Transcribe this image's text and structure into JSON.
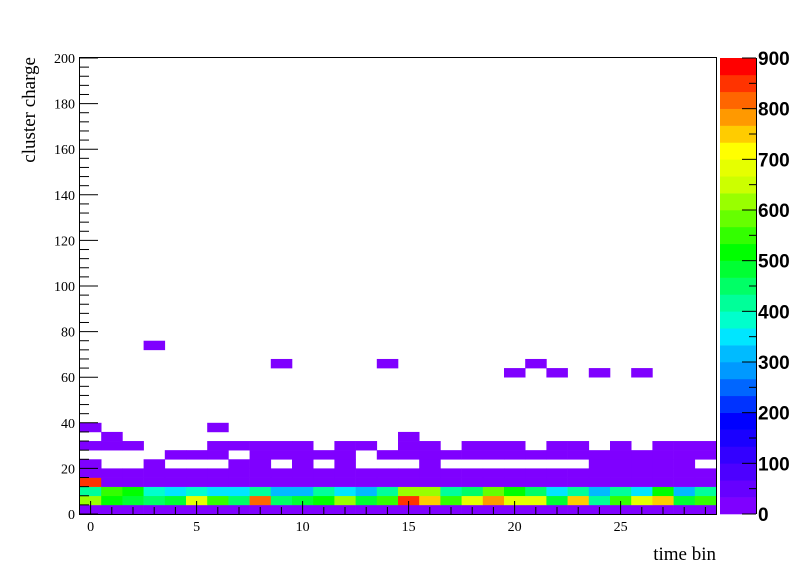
{
  "chart_data": {
    "type": "heatmap",
    "title": "",
    "xlabel": "time bin",
    "ylabel": "cluster charge",
    "xlim": [
      -0.5,
      29.5
    ],
    "ylim": [
      0,
      200
    ],
    "x_ticks": [
      0,
      5,
      10,
      15,
      20,
      25
    ],
    "y_ticks": [
      0,
      20,
      40,
      60,
      80,
      100,
      120,
      140,
      160,
      180,
      200
    ],
    "x_bin_width": 1,
    "y_bin_width": 4,
    "z_range": [
      0,
      900
    ],
    "colorbar_labels": [
      0,
      100,
      200,
      300,
      400,
      500,
      600,
      700,
      800,
      900
    ],
    "grid": false,
    "legend": "colorbar-right",
    "rows": [
      {
        "y": 0,
        "values": [
          20,
          20,
          20,
          20,
          20,
          20,
          20,
          20,
          20,
          20,
          20,
          20,
          20,
          20,
          20,
          20,
          20,
          20,
          20,
          20,
          20,
          20,
          20,
          20,
          20,
          20,
          20,
          20,
          20,
          20
        ]
      },
      {
        "y": 4,
        "values": [
          600,
          520,
          480,
          440,
          470,
          680,
          560,
          450,
          800,
          440,
          480,
          530,
          620,
          470,
          560,
          860,
          760,
          560,
          680,
          780,
          690,
          680,
          470,
          760,
          420,
          560,
          680,
          760,
          480,
          540
        ]
      },
      {
        "y": 8,
        "values": [
          430,
          560,
          500,
          380,
          350,
          380,
          350,
          360,
          430,
          330,
          330,
          420,
          340,
          330,
          400,
          600,
          630,
          430,
          440,
          590,
          500,
          450,
          350,
          400,
          300,
          420,
          350,
          500,
          330,
          420
        ]
      },
      {
        "y": 12,
        "values": [
          860,
          20,
          20,
          20,
          20,
          20,
          20,
          20,
          20,
          20,
          20,
          20,
          20,
          20,
          20,
          20,
          20,
          20,
          20,
          20,
          20,
          20,
          20,
          20,
          20,
          20,
          20,
          20,
          20,
          20
        ]
      },
      {
        "y": 16,
        "values": [
          20,
          20,
          20,
          20,
          20,
          20,
          20,
          20,
          20,
          20,
          20,
          20,
          20,
          20,
          20,
          20,
          20,
          20,
          20,
          20,
          20,
          20,
          20,
          20,
          20,
          20,
          20,
          20,
          20,
          20
        ]
      },
      {
        "y": 20,
        "values": [
          20,
          0,
          0,
          20,
          0,
          0,
          0,
          20,
          20,
          0,
          20,
          0,
          20,
          0,
          0,
          0,
          20,
          0,
          0,
          0,
          0,
          0,
          0,
          0,
          20,
          20,
          20,
          20,
          20,
          0
        ]
      },
      {
        "y": 24,
        "values": [
          0,
          0,
          0,
          0,
          20,
          20,
          20,
          0,
          20,
          20,
          20,
          20,
          20,
          0,
          20,
          20,
          20,
          20,
          20,
          20,
          20,
          20,
          20,
          20,
          20,
          20,
          20,
          20,
          20,
          20
        ]
      },
      {
        "y": 28,
        "values": [
          20,
          20,
          20,
          0,
          0,
          0,
          20,
          20,
          20,
          20,
          20,
          0,
          20,
          20,
          0,
          20,
          20,
          0,
          20,
          20,
          20,
          0,
          20,
          20,
          0,
          20,
          0,
          20,
          20,
          20
        ]
      },
      {
        "y": 32,
        "values": [
          0,
          20,
          0,
          0,
          0,
          0,
          0,
          0,
          0,
          0,
          0,
          0,
          0,
          0,
          0,
          20,
          0,
          0,
          0,
          0,
          0,
          0,
          0,
          0,
          0,
          0,
          0,
          0,
          0,
          0
        ]
      },
      {
        "y": 36,
        "values": [
          20,
          0,
          0,
          0,
          0,
          0,
          20,
          0,
          0,
          0,
          0,
          0,
          0,
          0,
          0,
          0,
          0,
          0,
          0,
          0,
          0,
          0,
          0,
          0,
          0,
          0,
          0,
          0,
          0,
          0
        ]
      },
      {
        "y": 60,
        "values": [
          0,
          0,
          0,
          0,
          0,
          0,
          0,
          0,
          0,
          0,
          0,
          0,
          0,
          0,
          0,
          0,
          0,
          0,
          0,
          0,
          20,
          0,
          20,
          0,
          20,
          0,
          20,
          0,
          0,
          0
        ]
      },
      {
        "y": 64,
        "values": [
          0,
          0,
          0,
          0,
          0,
          0,
          0,
          0,
          0,
          20,
          0,
          0,
          0,
          0,
          20,
          0,
          0,
          0,
          0,
          0,
          0,
          20,
          0,
          0,
          0,
          0,
          0,
          0,
          0,
          0
        ]
      },
      {
        "y": 72,
        "values": [
          0,
          0,
          0,
          20,
          0,
          0,
          0,
          0,
          0,
          0,
          0,
          0,
          0,
          0,
          0,
          0,
          0,
          0,
          0,
          0,
          0,
          0,
          0,
          0,
          0,
          0,
          0,
          0,
          0,
          0
        ]
      }
    ]
  },
  "colors": {
    "palette": [
      "#7f00ff",
      "#6600ff",
      "#4c00ff",
      "#3300ff",
      "#1a00ff",
      "#0000ff",
      "#0033ff",
      "#0066ff",
      "#0099ff",
      "#00bbff",
      "#00e6ff",
      "#00ffcc",
      "#00ff99",
      "#00ff66",
      "#00ff33",
      "#00ff00",
      "#33ff00",
      "#66ff00",
      "#99ff00",
      "#ccff00",
      "#e6ff00",
      "#ffff00",
      "#ffcc00",
      "#ff9900",
      "#ff6600",
      "#ff3300",
      "#ff0000"
    ],
    "axis": "#000000"
  }
}
